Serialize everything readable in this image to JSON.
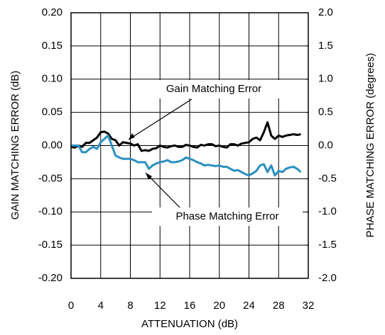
{
  "chart_data": {
    "type": "line",
    "xlabel": "ATTENUATION (dB)",
    "ylabel": "GAIN MATCHING ERROR (dB)",
    "y2label": "PHASE MATCHING ERROR (degrees)",
    "annotations": [
      "Gain Matching Error",
      "Phase Matching Error"
    ],
    "grid": true,
    "xlim": [
      0,
      32
    ],
    "xticks": [
      0,
      4,
      8,
      12,
      16,
      20,
      24,
      28,
      32
    ],
    "ylim": [
      -0.2,
      0.2
    ],
    "yticks": [
      {
        "value": 0.2,
        "label": "0.20"
      },
      {
        "value": 0.15,
        "label": "0.15"
      },
      {
        "value": 0.1,
        "label": "0.10"
      },
      {
        "value": 0.05,
        "label": "0.05"
      },
      {
        "value": 0,
        "label": "0.00"
      },
      {
        "value": -0.05,
        "label": "-0.05"
      },
      {
        "value": -0.1,
        "label": "-0.10"
      },
      {
        "value": -0.15,
        "label": "-0.15"
      },
      {
        "value": -0.2,
        "label": "-0.20"
      }
    ],
    "y2lim": [
      -2,
      2
    ],
    "y2ticks": [
      {
        "value": 2,
        "label": "2.0"
      },
      {
        "value": 1.5,
        "label": "1.5"
      },
      {
        "value": 1,
        "label": "1.0"
      },
      {
        "value": 0.5,
        "label": "0.5"
      },
      {
        "value": 0,
        "label": "0.0"
      },
      {
        "value": -0.5,
        "label": "-0.5"
      },
      {
        "value": -1,
        "label": "-1.0"
      },
      {
        "value": -1.5,
        "label": "-1.5"
      },
      {
        "value": -2,
        "label": "-2.0"
      }
    ],
    "x": [
      0,
      0.5,
      1,
      1.5,
      2,
      2.5,
      3,
      3.5,
      4,
      4.5,
      5,
      5.5,
      6,
      6.5,
      7,
      7.5,
      8,
      8.5,
      9,
      9.5,
      10,
      10.5,
      11,
      11.5,
      12,
      12.5,
      13,
      13.5,
      14,
      14.5,
      15,
      15.5,
      16,
      16.5,
      17,
      17.5,
      18,
      18.5,
      19,
      19.5,
      20,
      20.5,
      21,
      21.5,
      22,
      22.5,
      23,
      23.5,
      24,
      24.5,
      25,
      25.5,
      26,
      26.5,
      27,
      27.5,
      28,
      28.5,
      29,
      29.5,
      30,
      30.5,
      31
    ],
    "series": [
      {
        "name": "Gain Matching Error",
        "color": "#000000",
        "axis": "y",
        "values": [
          -0.002,
          -0.003,
          0,
          -0.002,
          0.004,
          0.004,
          0.008,
          0.012,
          0.02,
          0.021,
          0.018,
          0.01,
          0.008,
          0,
          0.005,
          0.004,
          0.003,
          0,
          0.002,
          -0.008,
          -0.007,
          -0.008,
          -0.005,
          -0.004,
          0,
          -0.002,
          -0.003,
          -0.001,
          0,
          -0.002,
          -0.002,
          0.001,
          0,
          -0.002,
          -0.003,
          0.001,
          0,
          0.002,
          0.002,
          -0.001,
          0,
          -0.002,
          -0.003,
          0.002,
          0.002,
          0,
          0.003,
          0.004,
          0.005,
          0.01,
          0.012,
          0.008,
          0.02,
          0.035,
          0.015,
          0.01,
          0.015,
          0.013,
          0.015,
          0.016,
          0.017,
          0.016,
          0.017
        ]
      },
      {
        "name": "Phase Matching Error",
        "color": "#2a8fc0",
        "axis": "y2",
        "values": [
          0,
          0,
          0,
          -0.1,
          -0.1,
          -0.05,
          -0.02,
          -0.05,
          0.05,
          0.1,
          0.15,
          0,
          -0.15,
          -0.18,
          -0.2,
          -0.2,
          -0.2,
          -0.22,
          -0.25,
          -0.25,
          -0.25,
          -0.35,
          -0.3,
          -0.27,
          -0.25,
          -0.24,
          -0.22,
          -0.25,
          -0.25,
          -0.24,
          -0.22,
          -0.18,
          -0.2,
          -0.22,
          -0.25,
          -0.27,
          -0.3,
          -0.29,
          -0.3,
          -0.31,
          -0.3,
          -0.32,
          -0.32,
          -0.35,
          -0.38,
          -0.37,
          -0.4,
          -0.43,
          -0.45,
          -0.42,
          -0.38,
          -0.3,
          -0.28,
          -0.4,
          -0.3,
          -0.45,
          -0.38,
          -0.4,
          -0.35,
          -0.33,
          -0.32,
          -0.35,
          -0.4
        ]
      }
    ]
  }
}
